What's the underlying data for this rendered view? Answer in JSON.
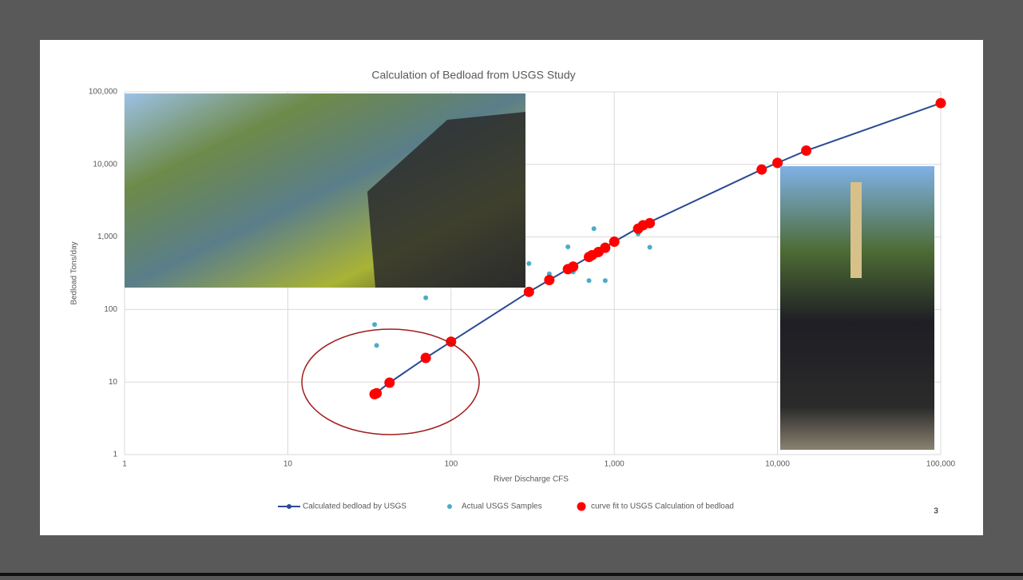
{
  "chart_data": {
    "type": "scatter",
    "title": "Calculation of Bedload from USGS Study",
    "x_label": "River Discharge CFS",
    "y_label": "Bedload Tons/day",
    "log_x": true,
    "log_y": true,
    "grid": true,
    "legend": "bottom",
    "xlim": [
      1,
      100000
    ],
    "ylim": [
      1,
      100000
    ],
    "xticks": [
      1,
      10,
      100,
      {
        "value": 1000,
        "label": "1,000"
      },
      {
        "value": 10000,
        "label": "10,000"
      },
      {
        "value": 100000,
        "label": "100,000"
      }
    ],
    "yticks": [
      1,
      10,
      100,
      {
        "value": 1000,
        "label": "1,000"
      },
      {
        "value": 10000,
        "label": "10,000"
      },
      {
        "value": 100000,
        "label": "100,000"
      }
    ],
    "series": [
      {
        "name": "Calculated bedload by USGS",
        "kind": "line",
        "color": "#2b4a95",
        "x": [
          34,
          42,
          70,
          100,
          300,
          400,
          520,
          700,
          1000,
          1500,
          8000,
          10000,
          15000,
          100000
        ],
        "values": [
          6.8,
          9.8,
          21.5,
          36,
          175,
          255,
          360,
          530,
          860,
          1450,
          8500,
          10500,
          15500,
          70000
        ]
      },
      {
        "name": "Actual USGS Samples",
        "kind": "marker",
        "color": "#4bacc6",
        "x": [
          34,
          35,
          70,
          300,
          400,
          520,
          560,
          700,
          750,
          780,
          880,
          1400,
          1650
        ],
        "values": [
          62,
          32,
          145,
          430,
          310,
          730,
          330,
          250,
          1300,
          560,
          250,
          1100,
          720
        ]
      },
      {
        "name": "curve fit to USGS Calculation of bedload",
        "kind": "big-marker",
        "color": "#ff0000",
        "x": [
          34,
          35,
          42,
          70,
          100,
          300,
          400,
          520,
          560,
          700,
          730,
          800,
          880,
          1000,
          1400,
          1500,
          1650,
          8000,
          10000,
          15000,
          100000
        ],
        "values": [
          6.8,
          7,
          9.8,
          21.5,
          36,
          175,
          255,
          360,
          390,
          530,
          560,
          620,
          710,
          860,
          1300,
          1450,
          1550,
          8500,
          10500,
          15500,
          70000
        ]
      }
    ]
  },
  "slide": {
    "page_number": "3"
  }
}
